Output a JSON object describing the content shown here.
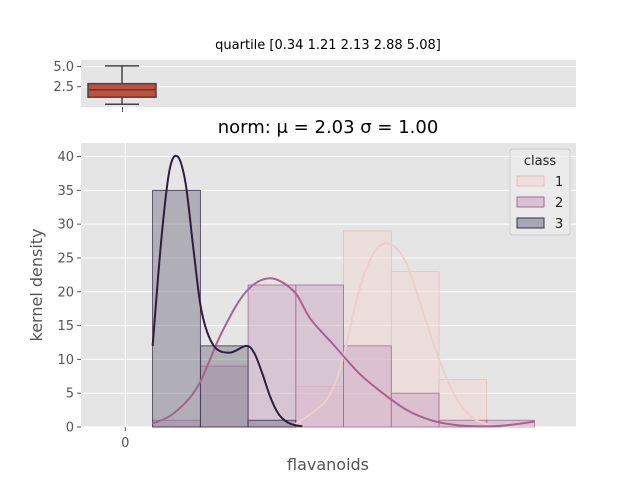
{
  "chart_data": [
    {
      "type": "box",
      "title": "quartile [0.34 1.21 2.13 2.88 5.08]",
      "quartiles": [
        0.34,
        1.21,
        2.13,
        2.88,
        5.08
      ],
      "yticks": [
        2.5,
        5.0
      ],
      "ytick_labels": [
        "2.5",
        "5.0"
      ],
      "ylim": [
        0,
        5.8
      ],
      "box_color": "#c44e3a"
    },
    {
      "type": "histogram",
      "title": "norm: μ = 2.03 σ = 1.00",
      "xlabel": "flavanoids",
      "ylabel": "kernel density",
      "xlim": [
        -0.55,
        5.6
      ],
      "ylim": [
        0,
        42
      ],
      "xticks": [
        0
      ],
      "xtick_labels": [
        "0"
      ],
      "yticks": [
        0,
        5,
        10,
        15,
        20,
        25,
        30,
        35,
        40
      ],
      "ytick_labels": [
        "0",
        "5",
        "10",
        "15",
        "20",
        "25",
        "30",
        "35",
        "40"
      ],
      "legend_title": "class",
      "legend_loc": "upper right",
      "bin_edges": [
        0.34,
        0.933,
        1.526,
        2.119,
        2.712,
        3.305,
        3.898,
        4.491,
        5.084
      ],
      "series": [
        {
          "name": "1",
          "color": "#f1d6d3",
          "edge": "#e7bfba",
          "line": "#eecfcb",
          "values": [
            0,
            0,
            0,
            6,
            29,
            23,
            7,
            0
          ]
        },
        {
          "name": "2",
          "color": "#cca6c3",
          "edge": "#a86a94",
          "line": "#a8628f",
          "values": [
            1,
            9,
            21,
            21,
            12,
            5,
            1,
            1
          ]
        },
        {
          "name": "3",
          "color": "#7b7a8a",
          "edge": "#3a2f4f",
          "line": "#2d1e3e",
          "values": [
            35,
            12,
            1,
            0,
            0,
            0,
            0,
            0
          ]
        }
      ],
      "kde": [
        {
          "name": "1",
          "x": [
            2.1,
            2.5,
            2.7,
            2.9,
            3.1,
            3.3,
            3.5,
            3.7,
            3.9,
            4.1,
            4.3,
            4.5,
            4.7,
            4.9,
            5.08
          ],
          "y": [
            0.3,
            4,
            10,
            20,
            26,
            27,
            24,
            17,
            10,
            4.5,
            1.5,
            0.4,
            0.1,
            0,
            0
          ]
        },
        {
          "name": "2",
          "x": [
            0.34,
            0.6,
            0.9,
            1.2,
            1.5,
            1.8,
            2.1,
            2.3,
            2.6,
            2.9,
            3.2,
            3.5,
            3.8,
            4.1,
            4.4,
            4.7,
            5.08
          ],
          "y": [
            0.5,
            2,
            6,
            14,
            20,
            22,
            20,
            16,
            12,
            8,
            5,
            2.5,
            1,
            0.3,
            0.1,
            0.2,
            0.8
          ]
        },
        {
          "name": "3",
          "x": [
            0.34,
            0.45,
            0.55,
            0.65,
            0.75,
            0.85,
            0.95,
            1.1,
            1.3,
            1.5,
            1.6,
            1.7,
            1.8,
            1.9,
            2.0,
            2.1,
            2.2
          ],
          "y": [
            12,
            28,
            38,
            40,
            36,
            26,
            17,
            12,
            11,
            12,
            11,
            8,
            4.5,
            2,
            0.8,
            0.3,
            0.1
          ]
        }
      ]
    }
  ]
}
